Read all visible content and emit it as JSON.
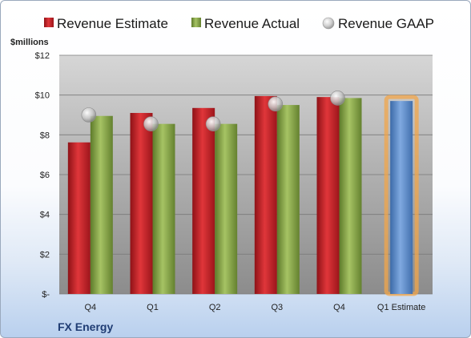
{
  "chart_data": {
    "type": "bar",
    "company": "FX Energy",
    "ylabel": "$millions",
    "ylim": [
      0,
      12
    ],
    "yticks": [
      {
        "value": 0,
        "label": "$-"
      },
      {
        "value": 2,
        "label": "$2"
      },
      {
        "value": 4,
        "label": "$4"
      },
      {
        "value": 6,
        "label": "$6"
      },
      {
        "value": 8,
        "label": "$8"
      },
      {
        "value": 10,
        "label": "$10"
      },
      {
        "value": 12,
        "label": "$12"
      }
    ],
    "categories": [
      "Q4",
      "Q1",
      "Q2",
      "Q3",
      "Q4",
      "Q1 Estimate"
    ],
    "series": [
      {
        "name": "Revenue Estimate",
        "kind": "bar",
        "color": "#cc2027",
        "values": [
          7.62,
          9.1,
          9.35,
          9.95,
          9.9,
          null
        ]
      },
      {
        "name": "Revenue Actual",
        "kind": "bar",
        "color": "#8aaa4a",
        "values": [
          8.95,
          8.55,
          8.55,
          9.5,
          9.85,
          null
        ]
      },
      {
        "name": "Revenue GAAP",
        "kind": "marker",
        "color": "#c8c8c8",
        "values": [
          9.0,
          8.55,
          8.55,
          9.55,
          9.85,
          null
        ]
      }
    ],
    "estimate_bar": {
      "category": "Q1 Estimate",
      "value": 9.7,
      "color": "#5b8fd0",
      "highlight": "#f2a64a"
    },
    "grid": true,
    "legend_position": "top"
  }
}
